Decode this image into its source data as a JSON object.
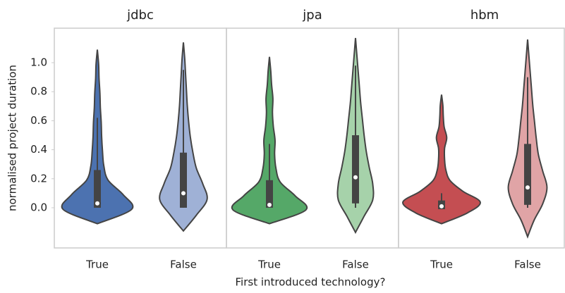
{
  "chart_data": {
    "type": "violin",
    "ylabel": "normalised project duration",
    "xlabel": "First introduced technology?",
    "ylim": [
      -0.277,
      1.238
    ],
    "yticks": [
      {
        "value": 0,
        "label": "0.0"
      },
      0.2,
      0.4,
      0.6,
      0.8,
      {
        "value": 1,
        "label": "1.0"
      }
    ],
    "grid": false,
    "panels": [
      {
        "title": "jdbc",
        "categories": [
          "True",
          "False"
        ],
        "violins": [
          {
            "color": "#4c72b0",
            "extent": [
              -0.11,
              1.09
            ],
            "density": [
              0,
              0.8,
              0.6,
              0.25,
              0.15,
              0.12,
              0.1,
              0.09,
              0.07,
              0.06,
              0.04,
              0.03,
              0
            ],
            "q1": 0,
            "median": 0.03,
            "q3": 0.26,
            "whisker": [
              0,
              0.62
            ]
          },
          {
            "color": "#9fb1d6",
            "extent": [
              -0.16,
              1.14
            ],
            "density": [
              0,
              0.3,
              0.55,
              0.45,
              0.3,
              0.22,
              0.16,
              0.12,
              0.09,
              0.07,
              0.05,
              0.03,
              0
            ],
            "q1": 0,
            "median": 0.1,
            "q3": 0.38,
            "whisker": [
              0,
              0.95
            ]
          }
        ]
      },
      {
        "title": "jpa",
        "categories": [
          "True",
          "False"
        ],
        "violins": [
          {
            "color": "#55a868",
            "extent": [
              -0.11,
              1.04
            ],
            "density": [
              0,
              0.85,
              0.6,
              0.25,
              0.15,
              0.12,
              0.13,
              0.09,
              0.07,
              0.08,
              0.05,
              0.03,
              0
            ],
            "q1": 0,
            "median": 0.02,
            "q3": 0.19,
            "whisker": [
              0,
              0.44
            ]
          },
          {
            "color": "#a6d2aa",
            "extent": [
              -0.17,
              1.17
            ],
            "density": [
              0,
              0.2,
              0.4,
              0.4,
              0.32,
              0.25,
              0.2,
              0.16,
              0.12,
              0.09,
              0.06,
              0.03,
              0
            ],
            "q1": 0.03,
            "median": 0.21,
            "q3": 0.5,
            "whisker": [
              0,
              0.98
            ]
          }
        ]
      },
      {
        "title": "hbm",
        "categories": [
          "True",
          "False"
        ],
        "violins": [
          {
            "color": "#c44e52",
            "extent": [
              -0.11,
              0.78
            ],
            "density": [
              0,
              0.6,
              0.9,
              0.5,
              0.2,
              0.1,
              0.07,
              0.07,
              0.12,
              0.06,
              0.04,
              0.03,
              0
            ],
            "q1": -0.01,
            "median": 0.01,
            "q3": 0.05,
            "whisker": [
              -0.01,
              0.1
            ]
          },
          {
            "color": "#e0a4a6",
            "extent": [
              -0.2,
              1.16
            ],
            "density": [
              0,
              0.15,
              0.35,
              0.45,
              0.35,
              0.25,
              0.2,
              0.16,
              0.12,
              0.09,
              0.06,
              0.03,
              0
            ],
            "q1": 0.02,
            "median": 0.14,
            "q3": 0.44,
            "whisker": [
              0,
              0.9
            ]
          }
        ]
      }
    ]
  }
}
